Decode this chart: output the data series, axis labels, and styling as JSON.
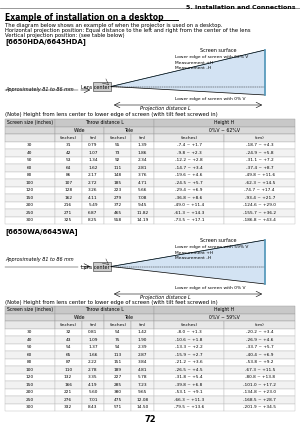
{
  "page_header": "5. Installation and Connections",
  "title": "Example of installation on a desktop",
  "subtitle1": "The diagram below shows an example of when the projector is used on a desktop.",
  "subtitle2": "Horizontal projection position: Equal distance to the left and right from the center of the lens",
  "subtitle3": "Vertical projection position: (see table below)",
  "model1": "[6650HDA/6645HDA]",
  "model2": "[6650WA/6645WA]",
  "diag1": {
    "lens_center": "Lens center",
    "screen_surface": "Screen surface",
    "lower_edge_pct": "Lower edge of screen with 62% V",
    "meas_plus_h": "Measurement +H",
    "meas_minus_h": "Measurement -H",
    "lower_edge_0": "Lower edge of screen with 0% V",
    "approx": "Approximately 81 to 86 mm",
    "proj_dist": "Projection distance L"
  },
  "diag2": {
    "lens_center": "Lens center",
    "screen_surface": "Screen surface",
    "lower_edge_pct": "Lower edge of screen with 59% V",
    "meas_plus_h": "Measurement +H",
    "meas_minus_h": "Measurement -H",
    "lower_edge_0": "Lower edge of screen with 0% V",
    "approx": "Approximately 81 to 86 mm",
    "proj_dist": "Projection distance L"
  },
  "note": "(Note) Height from lens center to lower edge of screen (with tilt feet screwed in)",
  "table1_range": "0%V ~ 62%V",
  "table2_range": "0%V ~ 59%V",
  "table1_data": [
    [
      "30",
      "31",
      "0.79",
      "55",
      "1.39",
      "-7.4 ~ +1.7",
      "-18.7 ~ +4.3"
    ],
    [
      "40",
      "42",
      "1.07",
      "73",
      "1.86",
      "-9.8 ~ +2.3",
      "-24.9 ~ +5.8"
    ],
    [
      "50",
      "53",
      "1.34",
      "92",
      "2.34",
      "-12.2 ~ +2.8",
      "-31.1 ~ +7.2"
    ],
    [
      "60",
      "64",
      "1.62",
      "111",
      "2.81",
      "-14.7 ~ +3.4",
      "-37.4 ~ +8.7"
    ],
    [
      "80",
      "86",
      "2.17",
      "148",
      "3.76",
      "-19.6 ~ +4.6",
      "-49.8 ~ +11.6"
    ],
    [
      "100",
      "107",
      "2.72",
      "185",
      "4.71",
      "-24.5 ~ +5.7",
      "-62.3 ~ +14.5"
    ],
    [
      "120",
      "128",
      "3.26",
      "223",
      "5.66",
      "-29.4 ~ +6.9",
      "-74.7 ~ +17.4"
    ],
    [
      "150",
      "162",
      "4.11",
      "279",
      "7.08",
      "-36.8 ~ +8.6",
      "-93.4 ~ +21.7"
    ],
    [
      "200",
      "216",
      "5.49",
      "372",
      "9.45",
      "-49.0 ~ +11.4",
      "-124.6 ~ +29.0"
    ],
    [
      "250",
      "271",
      "6.87",
      "465",
      "11.82",
      "-61.3 ~ +14.3",
      "-155.7 ~ +36.2"
    ],
    [
      "300",
      "325",
      "8.25",
      "558",
      "14.19",
      "-73.5 ~ +17.1",
      "-186.8 ~ +43.4"
    ]
  ],
  "table2_data": [
    [
      "30",
      "32",
      "0.81",
      "54",
      "1.42",
      "-8.0 ~ +1.3",
      "-20.2 ~ +3.4"
    ],
    [
      "40",
      "43",
      "1.09",
      "75",
      "1.90",
      "-10.6 ~ +1.8",
      "-26.9 ~ +4.6"
    ],
    [
      "50",
      "54",
      "1.37",
      "94",
      "2.39",
      "-13.3 ~ +2.2",
      "-33.7 ~ +5.7"
    ],
    [
      "60",
      "65",
      "1.66",
      "113",
      "2.87",
      "-15.9 ~ +2.7",
      "-40.4 ~ +6.9"
    ],
    [
      "80",
      "87",
      "2.22",
      "151",
      "3.84",
      "-21.2 ~ +3.6",
      "-53.8 ~ +9.2"
    ],
    [
      "100",
      "110",
      "2.78",
      "189",
      "4.81",
      "-26.5 ~ +4.5",
      "-67.3 ~ +11.5"
    ],
    [
      "120",
      "132",
      "3.35",
      "227",
      "5.78",
      "-31.8 ~ +5.4",
      "-80.8 ~ +13.8"
    ],
    [
      "150",
      "166",
      "4.19",
      "285",
      "7.23",
      "-39.8 ~ +6.8",
      "-101.0 ~ +17.2"
    ],
    [
      "200",
      "221",
      "5.60",
      "380",
      "9.65",
      "-53.1 ~ +9.1",
      "-134.8 ~ +23.0"
    ],
    [
      "250",
      "276",
      "7.01",
      "475",
      "12.08",
      "-66.3 ~ +11.3",
      "-168.5 ~ +28.7"
    ],
    [
      "300",
      "332",
      "8.43",
      "571",
      "14.50",
      "-79.5 ~ +13.6",
      "-201.9 ~ +34.5"
    ]
  ],
  "page_number": "72"
}
